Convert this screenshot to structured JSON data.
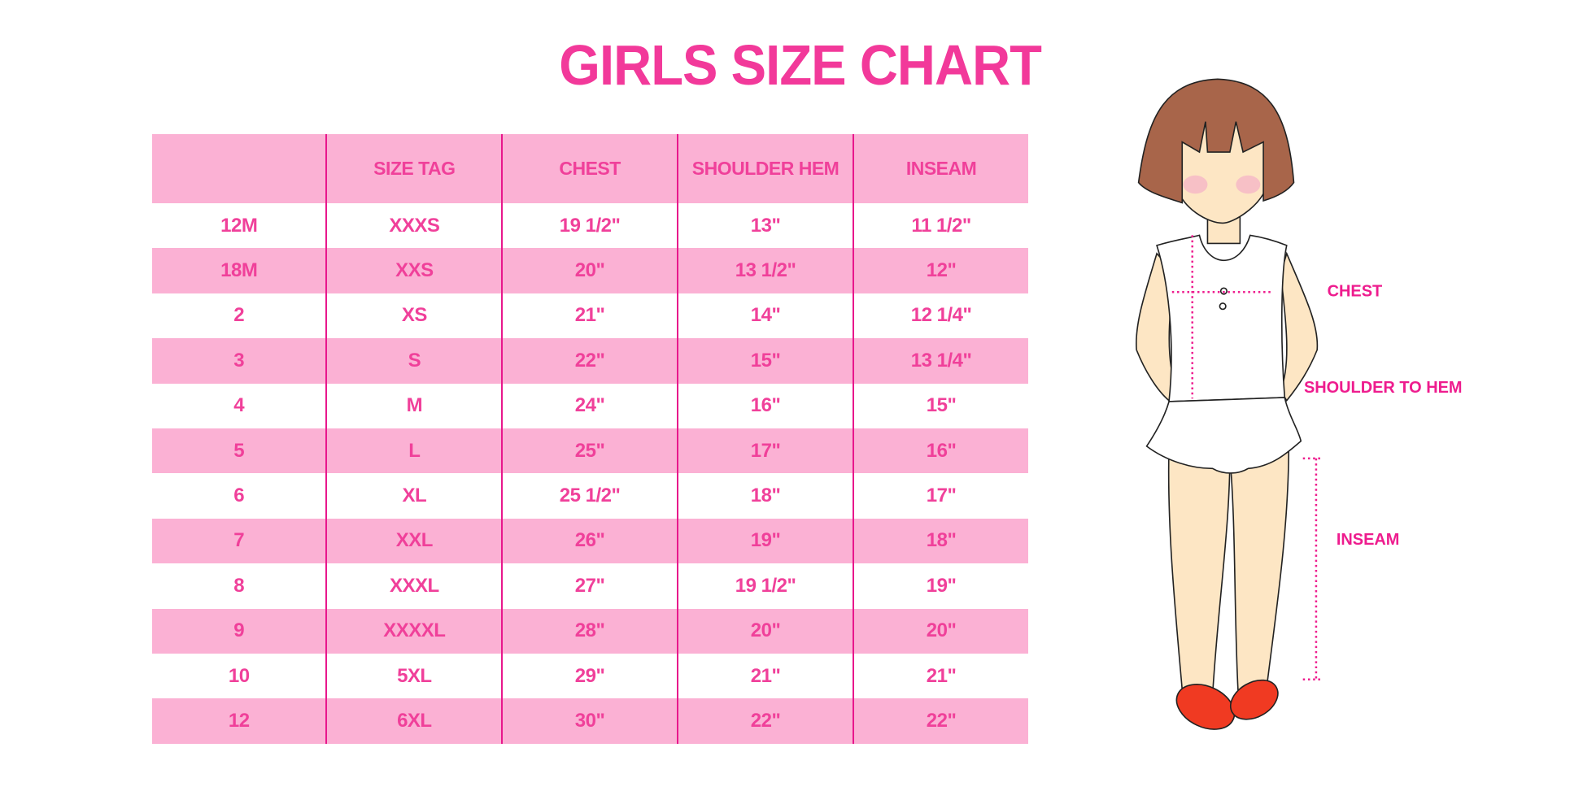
{
  "title": "GIRLS SIZE CHART",
  "table": {
    "headers": [
      "",
      "SIZE TAG",
      "CHEST",
      "SHOULDER HEM",
      "INSEAM"
    ],
    "rows": [
      [
        "12M",
        "XXXS",
        "19 1/2\"",
        "13\"",
        "11 1/2\""
      ],
      [
        "18M",
        "XXS",
        "20\"",
        "13 1/2\"",
        "12\""
      ],
      [
        "2",
        "XS",
        "21\"",
        "14\"",
        "12 1/4\""
      ],
      [
        "3",
        "S",
        "22\"",
        "15\"",
        "13 1/4\""
      ],
      [
        "4",
        "M",
        "24\"",
        "16\"",
        "15\""
      ],
      [
        "5",
        "L",
        "25\"",
        "17\"",
        "16\""
      ],
      [
        "6",
        "XL",
        "25 1/2\"",
        "18\"",
        "17\""
      ],
      [
        "7",
        "XXL",
        "26\"",
        "19\"",
        "18\""
      ],
      [
        "8",
        "XXXL",
        "27\"",
        "19 1/2\"",
        "19\""
      ],
      [
        "9",
        "XXXXL",
        "28\"",
        "20\"",
        "20\""
      ],
      [
        "10",
        "5XL",
        "29\"",
        "21\"",
        "21\""
      ],
      [
        "12",
        "6XL",
        "30\"",
        "22\"",
        "22\""
      ]
    ]
  },
  "figure": {
    "labels": {
      "chest": "CHEST",
      "shoulder_to_hem": "SHOULDER TO HEM",
      "inseam": "INSEAM"
    }
  },
  "colors": {
    "accent": "#f2399a",
    "row_pink": "#fbb1d4",
    "divider": "#e8178c",
    "hair": "#a8654a",
    "skin": "#fde6c4",
    "shoes": "#f03a22"
  }
}
